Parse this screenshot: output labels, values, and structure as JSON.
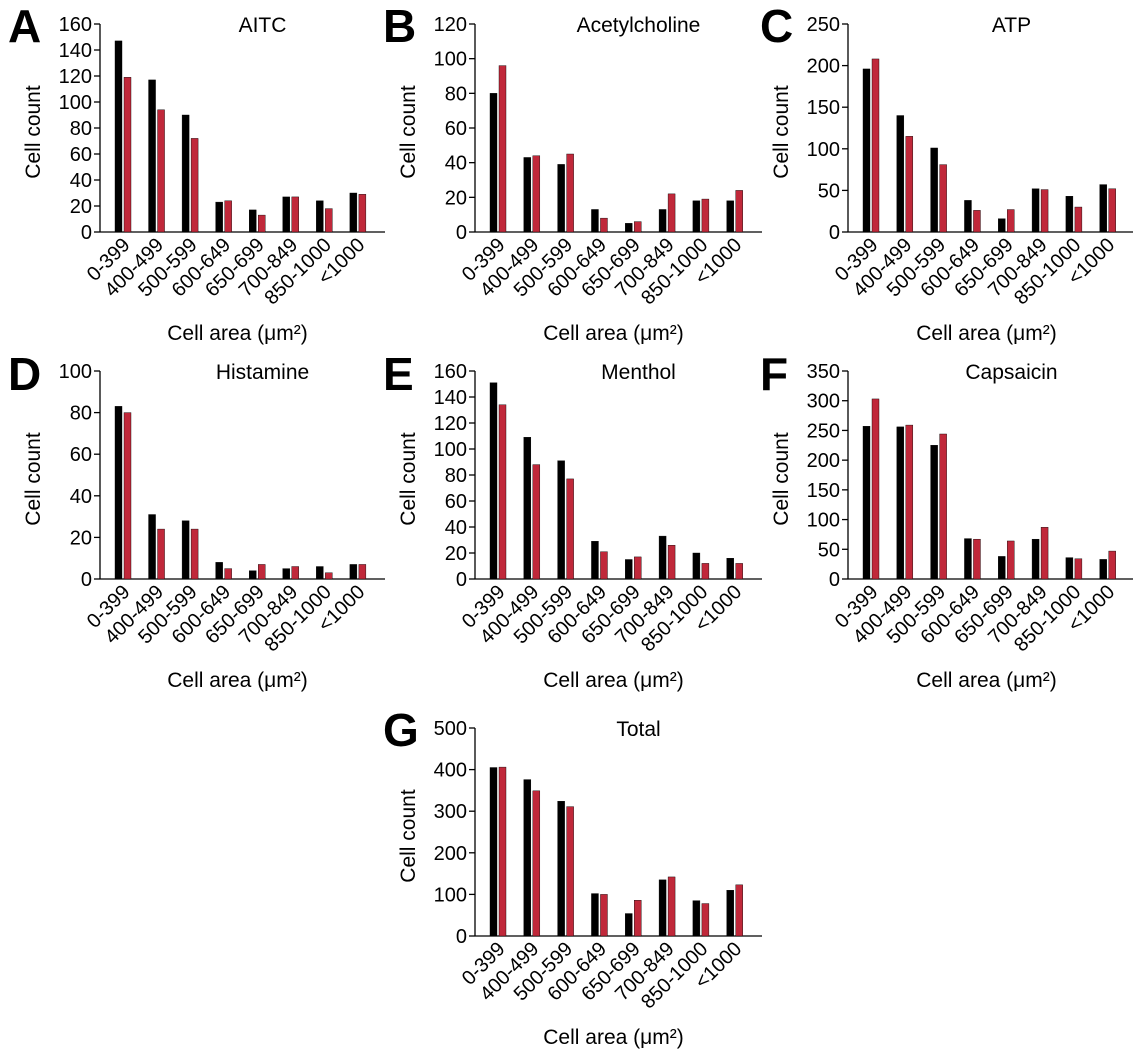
{
  "figure": {
    "series_colors": [
      "#000000",
      "#c0283a"
    ]
  },
  "chart_data": [
    {
      "panel": "A",
      "type": "bar",
      "title": "AITC",
      "xlabel": "Cell area (μm²)",
      "ylabel": "Cell count",
      "categories": [
        "0-399",
        "400-499",
        "500-599",
        "600-649",
        "650-699",
        "700-849",
        "850-1000",
        "<1000"
      ],
      "ylim": [
        0,
        160
      ],
      "yticks": [
        0,
        20,
        40,
        60,
        80,
        100,
        120,
        140,
        160
      ],
      "series": [
        {
          "values": [
            147,
            117,
            90,
            23,
            17,
            27,
            24,
            30
          ]
        },
        {
          "values": [
            119,
            94,
            72,
            24,
            13,
            27,
            18,
            29
          ]
        }
      ]
    },
    {
      "panel": "B",
      "type": "bar",
      "title": "Acetylcholine",
      "xlabel": "Cell area (μm²)",
      "ylabel": "Cell count",
      "categories": [
        "0-399",
        "400-499",
        "500-599",
        "600-649",
        "650-699",
        "700-849",
        "850-1000",
        "<1000"
      ],
      "ylim": [
        0,
        120
      ],
      "yticks": [
        0,
        20,
        40,
        60,
        80,
        100,
        120
      ],
      "series": [
        {
          "values": [
            80,
            43,
            39,
            13,
            5,
            13,
            18,
            18
          ]
        },
        {
          "values": [
            96,
            44,
            45,
            8,
            6,
            22,
            19,
            24
          ]
        }
      ]
    },
    {
      "panel": "C",
      "type": "bar",
      "title": "ATP",
      "xlabel": "Cell area (μm²)",
      "ylabel": "Cell count",
      "categories": [
        "0-399",
        "400-499",
        "500-599",
        "600-649",
        "650-699",
        "700-849",
        "850-1000",
        "<1000"
      ],
      "ylim": [
        0,
        250
      ],
      "yticks": [
        0,
        50,
        100,
        150,
        200,
        250
      ],
      "series": [
        {
          "values": [
            196,
            140,
            101,
            38,
            16,
            52,
            43,
            57
          ]
        },
        {
          "values": [
            208,
            115,
            81,
            26,
            27,
            51,
            30,
            52
          ]
        }
      ]
    },
    {
      "panel": "D",
      "type": "bar",
      "title": "Histamine",
      "xlabel": "Cell area (μm²)",
      "ylabel": "Cell count",
      "categories": [
        "0-399",
        "400-499",
        "500-599",
        "600-649",
        "650-699",
        "700-849",
        "850-1000",
        "<1000"
      ],
      "ylim": [
        0,
        100
      ],
      "yticks": [
        0,
        20,
        40,
        60,
        80,
        100
      ],
      "series": [
        {
          "values": [
            83,
            31,
            28,
            8,
            4,
            5,
            6,
            7
          ]
        },
        {
          "values": [
            80,
            24,
            24,
            5,
            7,
            6,
            3,
            7
          ]
        }
      ]
    },
    {
      "panel": "E",
      "type": "bar",
      "title": "Menthol",
      "xlabel": "Cell area (μm²)",
      "ylabel": "Cell count",
      "categories": [
        "0-399",
        "400-499",
        "500-599",
        "600-649",
        "650-699",
        "700-849",
        "850-1000",
        "<1000"
      ],
      "ylim": [
        0,
        160
      ],
      "yticks": [
        0,
        20,
        40,
        60,
        80,
        100,
        120,
        140,
        160
      ],
      "series": [
        {
          "values": [
            151,
            109,
            91,
            29,
            15,
            33,
            20,
            16
          ]
        },
        {
          "values": [
            134,
            88,
            77,
            21,
            17,
            26,
            12,
            12
          ]
        }
      ]
    },
    {
      "panel": "F",
      "type": "bar",
      "title": "Capsaicin",
      "xlabel": "Cell area (μm²)",
      "ylabel": "Cell count",
      "categories": [
        "0-399",
        "400-499",
        "500-599",
        "600-649",
        "650-699",
        "700-849",
        "850-1000",
        "<1000"
      ],
      "ylim": [
        0,
        350
      ],
      "yticks": [
        0,
        50,
        100,
        150,
        200,
        250,
        300,
        350
      ],
      "series": [
        {
          "values": [
            257,
            256,
            225,
            68,
            38,
            67,
            36,
            33
          ]
        },
        {
          "values": [
            303,
            259,
            244,
            67,
            64,
            87,
            34,
            47
          ]
        }
      ]
    },
    {
      "panel": "G",
      "type": "bar",
      "title": "Total",
      "xlabel": "Cell area (μm²)",
      "ylabel": "Cell count",
      "categories": [
        "0-399",
        "400-499",
        "500-599",
        "600-649",
        "650-699",
        "700-849",
        "850-1000",
        "<1000"
      ],
      "ylim": [
        0,
        500
      ],
      "yticks": [
        0,
        100,
        200,
        300,
        400,
        500
      ],
      "series": [
        {
          "values": [
            405,
            376,
            324,
            102,
            54,
            135,
            85,
            110
          ]
        },
        {
          "values": [
            406,
            349,
            311,
            100,
            86,
            142,
            78,
            123
          ]
        }
      ]
    }
  ]
}
